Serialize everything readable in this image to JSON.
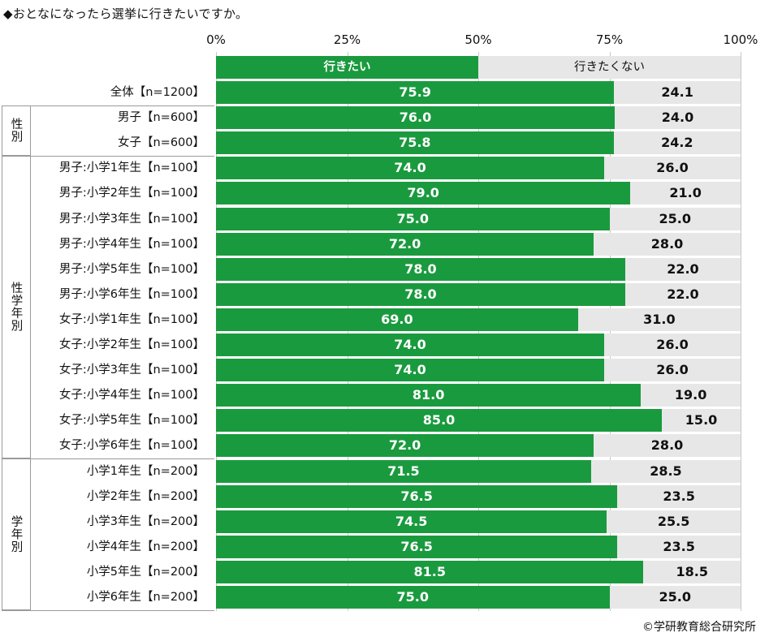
{
  "title": "◆おとなになったら選挙に行きたいですか。",
  "credit": "©学研教育総合研究所",
  "colors": {
    "yes": "#1a9a3e",
    "no": "#e7e7e7"
  },
  "chart_data": {
    "type": "bar",
    "orientation": "horizontal",
    "stacked": true,
    "xlim": [
      0,
      100
    ],
    "x_ticks": [
      "0%",
      "25%",
      "50%",
      "75%",
      "100%"
    ],
    "legend": [
      "行きたい",
      "行きたくない"
    ],
    "legend_placement": "top, inside first bar",
    "categories": [
      "全体【n=1200】",
      "男子【n=600】",
      "女子【n=600】",
      "男子:小学1年生【n=100】",
      "男子:小学2年生【n=100】",
      "男子:小学3年生【n=100】",
      "男子:小学4年生【n=100】",
      "男子:小学5年生【n=100】",
      "男子:小学6年生【n=100】",
      "女子:小学1年生【n=100】",
      "女子:小学2年生【n=100】",
      "女子:小学3年生【n=100】",
      "女子:小学4年生【n=100】",
      "女子:小学5年生【n=100】",
      "女子:小学6年生【n=100】",
      "小学1年生【n=200】",
      "小学2年生【n=200】",
      "小学3年生【n=200】",
      "小学4年生【n=200】",
      "小学5年生【n=200】",
      "小学6年生【n=200】"
    ],
    "series": [
      {
        "name": "行きたい",
        "values": [
          75.9,
          76.0,
          75.8,
          74.0,
          79.0,
          75.0,
          72.0,
          78.0,
          78.0,
          69.0,
          74.0,
          74.0,
          81.0,
          85.0,
          72.0,
          71.5,
          76.5,
          74.5,
          76.5,
          81.5,
          75.0
        ]
      },
      {
        "name": "行きたくない",
        "values": [
          24.1,
          24.0,
          24.2,
          26.0,
          21.0,
          25.0,
          28.0,
          22.0,
          22.0,
          31.0,
          26.0,
          26.0,
          19.0,
          15.0,
          28.0,
          28.5,
          23.5,
          25.5,
          23.5,
          18.5,
          25.0
        ]
      }
    ],
    "groups": [
      {
        "label": "性別",
        "start": 1,
        "end": 2
      },
      {
        "label": "性学年別",
        "start": 3,
        "end": 14
      },
      {
        "label": "学年別",
        "start": 15,
        "end": 20
      }
    ]
  }
}
